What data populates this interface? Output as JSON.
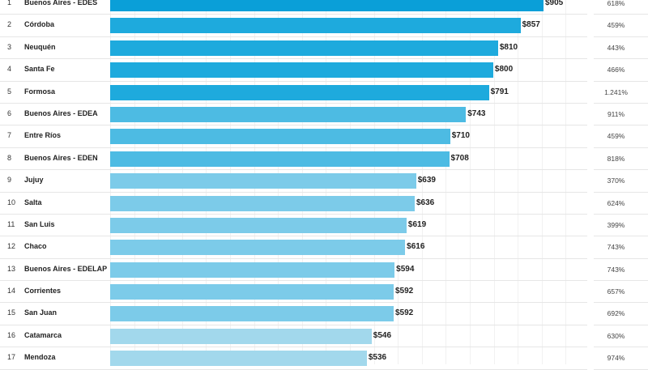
{
  "chart_data": {
    "type": "bar",
    "orientation": "horizontal",
    "categories": [
      "Buenos Aires - EDES",
      "Córdoba",
      "Neuquén",
      "Santa Fe",
      "Formosa",
      "Buenos Aires - EDEA",
      "Entre Ríos",
      "Buenos Aires - EDEN",
      "Jujuy",
      "Salta",
      "San Luis",
      "Chaco",
      "Buenos Aires - EDELAP",
      "Corrientes",
      "San Juan",
      "Catamarca",
      "Mendoza"
    ],
    "ranks": [
      "1",
      "2",
      "3",
      "4",
      "5",
      "6",
      "7",
      "8",
      "9",
      "10",
      "11",
      "12",
      "13",
      "14",
      "15",
      "16",
      "17"
    ],
    "values": [
      905,
      857,
      810,
      800,
      791,
      743,
      710,
      708,
      639,
      636,
      619,
      616,
      594,
      592,
      592,
      546,
      536
    ],
    "value_labels": [
      "$905",
      "$857",
      "$810",
      "$800",
      "$791",
      "$743",
      "$710",
      "$708",
      "$639",
      "$636",
      "$619",
      "$616",
      "$594",
      "$592",
      "$592",
      "$546",
      "$536"
    ],
    "percent_labels": [
      "618%",
      "459%",
      "443%",
      "466%",
      "1.241%",
      "911%",
      "459%",
      "818%",
      "370%",
      "624%",
      "399%",
      "743%",
      "743%",
      "657%",
      "692%",
      "630%",
      "974%"
    ],
    "colors": [
      "#0a9fd8",
      "#1eaadd",
      "#1eaadd",
      "#1eaadd",
      "#1eaadd",
      "#4dbbe3",
      "#4dbbe3",
      "#4dbbe3",
      "#7ccbe9",
      "#7ccbe9",
      "#7ccbe9",
      "#7ccbe9",
      "#7ccbe9",
      "#7ccbe9",
      "#7ccbe9",
      "#a2d8ec",
      "#a2d8ec"
    ],
    "xlim": [
      0,
      1000
    ],
    "grid": true
  }
}
